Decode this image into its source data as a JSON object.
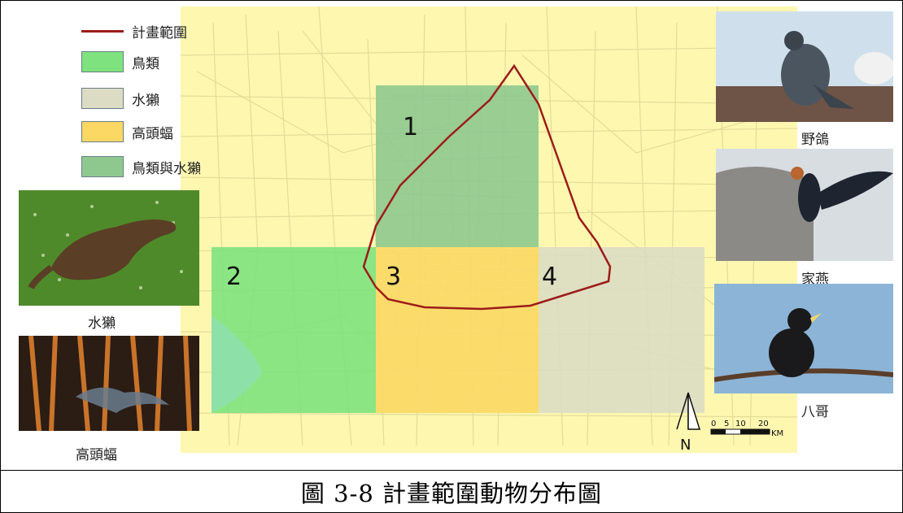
{
  "legend": {
    "items": [
      {
        "label": "計畫範圍",
        "kind": "line",
        "color": "#9c1c1a"
      },
      {
        "label": "鳥類",
        "kind": "box",
        "color": "#7ee27e"
      },
      {
        "label": "水獺",
        "kind": "box",
        "color": "#dcdcc4"
      },
      {
        "label": "高頭蝠",
        "kind": "box",
        "color": "#fbd864"
      },
      {
        "label": "鳥類與水獺",
        "kind": "box",
        "color": "#8fc88f"
      }
    ]
  },
  "zones": [
    "1",
    "2",
    "3",
    "4"
  ],
  "compass": "N",
  "scalebar": {
    "ticks": [
      "0",
      "5",
      "10",
      "20"
    ],
    "unit": "KM"
  },
  "photos": {
    "otter": "水獺",
    "bat": "高頭蝠",
    "pigeon": "野鴿",
    "swallow": "家燕",
    "myna": "八哥"
  },
  "caption": "圖 3-8 計畫範圍動物分布圖",
  "colors": {
    "map_bg": "#fdf7b0",
    "plan_boundary": "#9c1c1a",
    "birds": "#7ee27e",
    "otter": "#dcdcc4",
    "bat": "#fbd864",
    "birds_and_otter": "#8fc88f"
  }
}
